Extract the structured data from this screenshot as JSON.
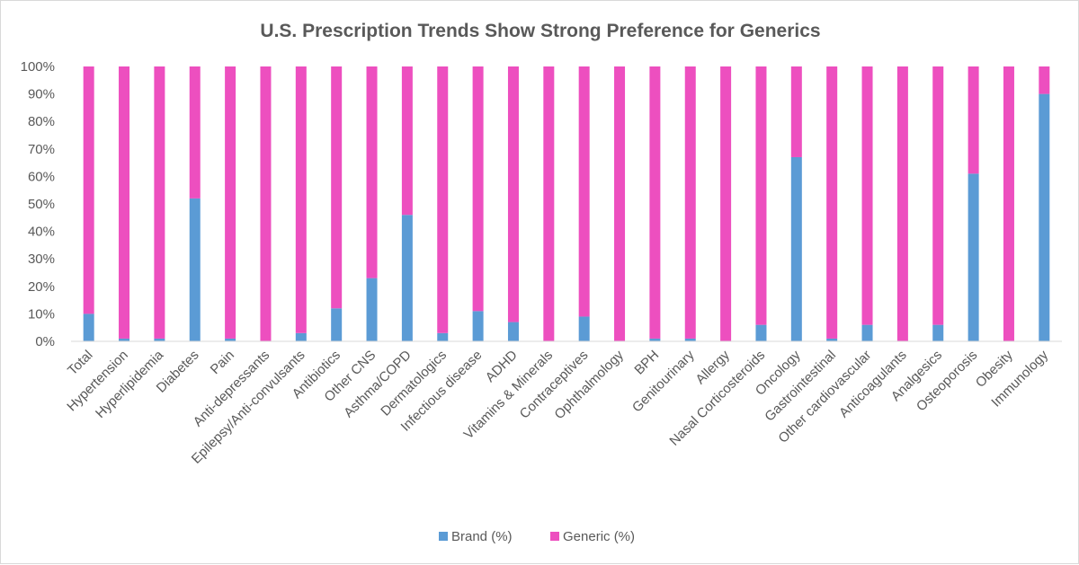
{
  "chart_data": {
    "type": "bar",
    "stacked": true,
    "title": "U.S. Prescription Trends Show Strong Preference for Generics",
    "xlabel": "",
    "ylabel": "",
    "ylim": [
      0,
      100
    ],
    "y_ticks": [
      "0%",
      "10%",
      "20%",
      "30%",
      "40%",
      "50%",
      "60%",
      "70%",
      "80%",
      "90%",
      "100%"
    ],
    "grid": false,
    "legend_position": "bottom",
    "categories": [
      "Total",
      "Hypertension",
      "Hyperlipidemia",
      "Diabetes",
      "Pain",
      "Anti-depressants",
      "Epilepsy/Anti-convulsants",
      "Antibiotics",
      "Other CNS",
      "Asthma/COPD",
      "Dermatologics",
      "Infectious disease",
      "ADHD",
      "Vitamins & Minerals",
      "Contraceptives",
      "Ophthalmology",
      "BPH",
      "Genitourinary",
      "Allergy",
      "Nasal Corticosteroids",
      "Oncology",
      "Gastrointestinal",
      "Other cardiovascular",
      "Anticoagulants",
      "Analgesics",
      "Osteoporosis",
      "Obesity",
      "Immunology"
    ],
    "series": [
      {
        "name": "Brand (%)",
        "color": "#5b9bd5",
        "values": [
          10,
          1,
          1,
          52,
          1,
          0,
          3,
          12,
          23,
          46,
          3,
          11,
          7,
          0,
          9,
          0,
          1,
          1,
          0,
          6,
          67,
          1,
          6,
          0,
          6,
          61,
          0,
          90
        ]
      },
      {
        "name": "Generic (%)",
        "color": "#ed4fbf",
        "values": [
          90,
          99,
          99,
          48,
          99,
          100,
          97,
          88,
          77,
          54,
          97,
          89,
          93,
          100,
          91,
          100,
          99,
          99,
          100,
          94,
          33,
          99,
          94,
          100,
          94,
          39,
          100,
          10
        ]
      }
    ]
  }
}
